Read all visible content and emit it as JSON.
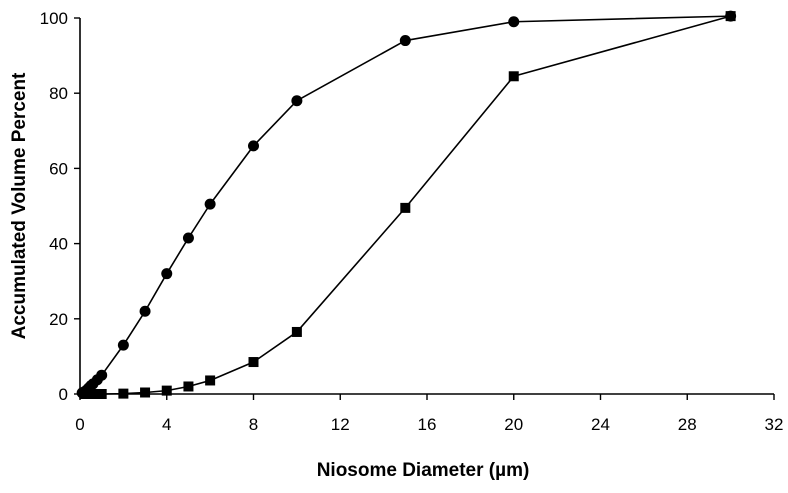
{
  "chart_data": {
    "type": "line",
    "title": "",
    "xlabel": "Niosome Diameter (µm)",
    "ylabel": "Accumulated Volume Percent",
    "xlim": [
      0,
      32
    ],
    "ylim": [
      0,
      100
    ],
    "xticks": [
      "0",
      "4",
      "8",
      "12",
      "16",
      "20",
      "24",
      "28",
      "32"
    ],
    "yticks": [
      "0",
      "20",
      "40",
      "60",
      "80",
      "100"
    ],
    "grid": false,
    "legend": "none",
    "series": [
      {
        "marker": "circle",
        "color": "#000000",
        "points": [
          {
            "x": 0.1,
            "y": 0.3
          },
          {
            "x": 0.2,
            "y": 0.6
          },
          {
            "x": 0.3,
            "y": 1.0
          },
          {
            "x": 0.4,
            "y": 1.6
          },
          {
            "x": 0.5,
            "y": 2.2
          },
          {
            "x": 0.6,
            "y": 2.7
          },
          {
            "x": 0.8,
            "y": 3.8
          },
          {
            "x": 1,
            "y": 5
          },
          {
            "x": 2,
            "y": 13
          },
          {
            "x": 3,
            "y": 22
          },
          {
            "x": 4,
            "y": 32
          },
          {
            "x": 5,
            "y": 41.5
          },
          {
            "x": 6,
            "y": 50.5
          },
          {
            "x": 8,
            "y": 66
          },
          {
            "x": 10,
            "y": 78
          },
          {
            "x": 15,
            "y": 94
          },
          {
            "x": 20,
            "y": 99
          },
          {
            "x": 30,
            "y": 100.5
          }
        ]
      },
      {
        "marker": "square",
        "color": "#000000",
        "points": [
          {
            "x": 0.2,
            "y": 0
          },
          {
            "x": 0.4,
            "y": 0
          },
          {
            "x": 0.6,
            "y": 0
          },
          {
            "x": 1,
            "y": 0
          },
          {
            "x": 2,
            "y": 0.1
          },
          {
            "x": 3,
            "y": 0.4
          },
          {
            "x": 4,
            "y": 0.9
          },
          {
            "x": 5,
            "y": 2
          },
          {
            "x": 6,
            "y": 3.6
          },
          {
            "x": 8,
            "y": 8.5
          },
          {
            "x": 10,
            "y": 16.5
          },
          {
            "x": 15,
            "y": 49.5
          },
          {
            "x": 20,
            "y": 84.5
          },
          {
            "x": 30,
            "y": 100.5
          }
        ]
      }
    ]
  }
}
